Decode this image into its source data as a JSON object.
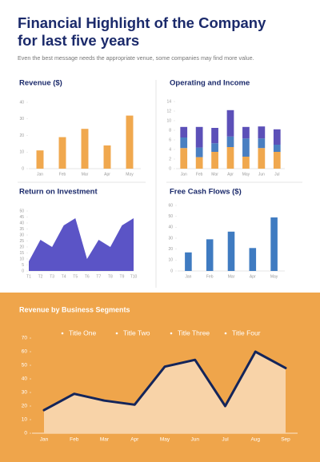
{
  "header": {
    "title": "Financial Highlight of the Company for last five years",
    "subtitle": "Even the best message needs the appropriate venue, some companies may find more value."
  },
  "chart_data": [
    {
      "type": "bar",
      "title": "Revenue ($)",
      "categories": [
        "Jan",
        "Feb",
        "Mar",
        "Apr",
        "May"
      ],
      "values": [
        11,
        19,
        24,
        14,
        32
      ],
      "color": "#f0a84e",
      "ylim": [
        0,
        40
      ],
      "yticks": [
        0,
        10,
        20,
        30,
        40
      ]
    },
    {
      "type": "bar",
      "stacked": true,
      "title": "Operating and Income",
      "categories": [
        "Jan",
        "Feb",
        "Mar",
        "Apr",
        "May",
        "Jun",
        "Jul"
      ],
      "series": [
        {
          "color": "#f0a84e",
          "values": [
            4.3,
            2.4,
            3.5,
            4.5,
            2.5,
            4.3,
            3.5
          ]
        },
        {
          "color": "#4a7fc1",
          "values": [
            2.2,
            2.0,
            1.8,
            2.2,
            3.8,
            2.0,
            1.5
          ]
        },
        {
          "color": "#5c50b8",
          "values": [
            2.2,
            4.3,
            3.2,
            5.5,
            2.4,
            2.5,
            3.2
          ]
        }
      ],
      "ylim": [
        0,
        14
      ],
      "yticks": [
        0,
        2,
        4,
        6,
        8,
        10,
        12,
        14
      ]
    },
    {
      "type": "area",
      "title": "Return on Investment",
      "categories": [
        "T1",
        "T2",
        "T3",
        "T4",
        "T5",
        "T6",
        "T7",
        "T8",
        "T9",
        "T10"
      ],
      "values": [
        8,
        26,
        20,
        38,
        44,
        10,
        26,
        20,
        38,
        44
      ],
      "color": "#5b54c6",
      "ylim": [
        0,
        50
      ],
      "yticks": [
        0,
        5,
        10,
        15,
        20,
        25,
        30,
        35,
        40,
        45,
        50
      ]
    },
    {
      "type": "bar",
      "title": "Free Cash Flows ($)",
      "categories": [
        "Jan",
        "Feb",
        "Mar",
        "Apr",
        "May"
      ],
      "values": [
        17,
        29,
        36,
        21,
        49
      ],
      "color": "#3f7bc1",
      "ylim": [
        0,
        60
      ],
      "yticks": [
        0,
        10,
        20,
        30,
        40,
        50,
        60
      ]
    },
    {
      "type": "line",
      "title": "Revenue by Business Segments",
      "legend": [
        "Title One",
        "Title Two",
        "Title Three",
        "Title Four"
      ],
      "categories": [
        "Jan",
        "Feb",
        "Mar",
        "Apr",
        "May",
        "Jun",
        "Jul",
        "Aug",
        "Sep"
      ],
      "values": [
        17,
        29,
        24,
        21,
        49,
        54,
        20,
        60,
        48
      ],
      "color": "#14255a",
      "area_color": "#f8d3a8",
      "ylim": [
        0,
        70
      ],
      "yticks": [
        0,
        10,
        20,
        30,
        40,
        50,
        60,
        70
      ]
    }
  ]
}
